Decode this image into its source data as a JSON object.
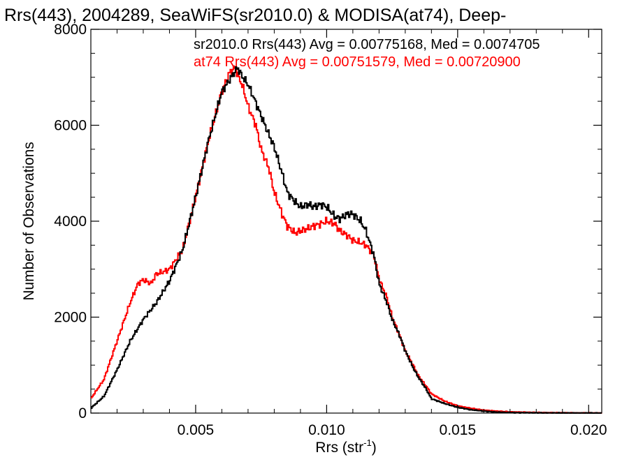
{
  "chart_data": {
    "type": "line",
    "title": "Rrs(443), 2004289, SeaWiFS(sr2010.0) & MODISA(at74), Deep-",
    "xlabel": "Rrs (str",
    "xlabel_sup": "-1",
    "xlabel_end": ")",
    "ylabel": "Number of Observations",
    "xlim": [
      0.001,
      0.0205
    ],
    "ylim": [
      0,
      8000
    ],
    "x_ticks": [
      {
        "value": 0.005,
        "label": "0.005"
      },
      {
        "value": 0.01,
        "label": "0.010"
      },
      {
        "value": 0.015,
        "label": "0.015"
      },
      {
        "value": 0.02,
        "label": "0.020"
      }
    ],
    "y_ticks": [
      {
        "value": 0,
        "label": "0"
      },
      {
        "value": 2000,
        "label": "2000"
      },
      {
        "value": 4000,
        "label": "4000"
      },
      {
        "value": 6000,
        "label": "6000"
      },
      {
        "value": 8000,
        "label": "8000"
      }
    ],
    "grid": false,
    "legend_position": "top",
    "series": [
      {
        "label": "sr2010.0 Rrs(443) Avg = 0.00775168, Med = 0.0074705",
        "color": "#000000",
        "x": [
          0.001,
          0.0015,
          0.002,
          0.0025,
          0.003,
          0.0035,
          0.004,
          0.0045,
          0.005,
          0.0055,
          0.006,
          0.0063,
          0.0066,
          0.0068,
          0.007,
          0.0072,
          0.0075,
          0.0078,
          0.008,
          0.0083,
          0.0085,
          0.0088,
          0.009,
          0.0093,
          0.0095,
          0.0098,
          0.01,
          0.0103,
          0.0105,
          0.0108,
          0.011,
          0.0113,
          0.0115,
          0.0118,
          0.012,
          0.0123,
          0.0125,
          0.0128,
          0.013,
          0.0133,
          0.0135,
          0.0138,
          0.014,
          0.0145,
          0.015,
          0.0155,
          0.016,
          0.0165,
          0.017,
          0.018,
          0.019,
          0.02,
          0.0205
        ],
        "y": [
          100,
          350,
          900,
          1500,
          1950,
          2300,
          2750,
          3400,
          4500,
          5700,
          6700,
          6950,
          7200,
          7000,
          6850,
          6600,
          6200,
          5800,
          5550,
          5000,
          4600,
          4400,
          4300,
          4350,
          4300,
          4350,
          4300,
          4100,
          4050,
          4150,
          4150,
          4000,
          3800,
          3300,
          2700,
          2300,
          1950,
          1600,
          1300,
          950,
          750,
          500,
          300,
          200,
          120,
          70,
          40,
          20,
          10,
          5,
          2,
          1,
          0
        ]
      },
      {
        "label": "at74 Rrs(443) Avg = 0.00751579, Med = 0.00720900",
        "color": "#ff0000",
        "x": [
          0.001,
          0.0015,
          0.002,
          0.0025,
          0.0028,
          0.003,
          0.0033,
          0.0035,
          0.0038,
          0.004,
          0.0045,
          0.005,
          0.0055,
          0.006,
          0.0063,
          0.0065,
          0.0068,
          0.007,
          0.0073,
          0.0075,
          0.0078,
          0.008,
          0.0083,
          0.0085,
          0.0088,
          0.009,
          0.0093,
          0.0095,
          0.0098,
          0.01,
          0.0103,
          0.0105,
          0.0108,
          0.011,
          0.0113,
          0.0115,
          0.0118,
          0.012,
          0.0123,
          0.0125,
          0.0128,
          0.013,
          0.0133,
          0.0135,
          0.0138,
          0.014,
          0.0145,
          0.015,
          0.0155,
          0.016,
          0.0165,
          0.017,
          0.018,
          0.019,
          0.02,
          0.0205
        ],
        "y": [
          300,
          700,
          1500,
          2300,
          2700,
          2780,
          2700,
          2900,
          2950,
          3000,
          3400,
          4500,
          5700,
          6700,
          7100,
          7200,
          6800,
          6400,
          6000,
          5500,
          5100,
          4600,
          4150,
          3900,
          3750,
          3800,
          3850,
          3900,
          3950,
          4000,
          3950,
          3800,
          3700,
          3600,
          3550,
          3500,
          3300,
          2800,
          2400,
          2000,
          1600,
          1300,
          1000,
          780,
          560,
          400,
          250,
          150,
          100,
          60,
          40,
          25,
          12,
          5,
          2,
          0
        ]
      }
    ]
  }
}
